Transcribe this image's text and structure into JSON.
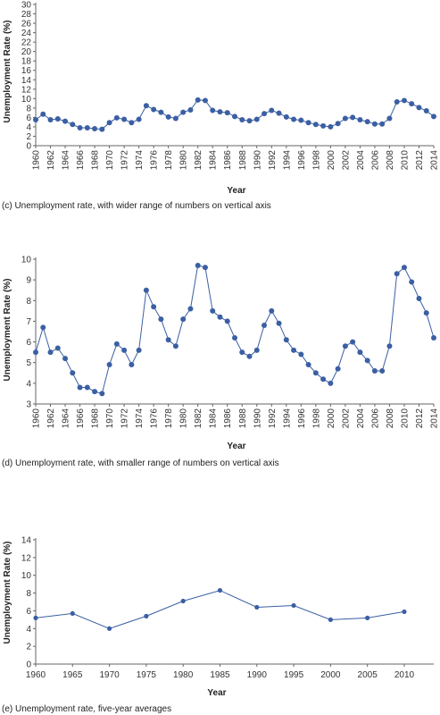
{
  "colors": {
    "series": "#3b5fa3",
    "axis": "#666666",
    "text": "#222222"
  },
  "chart_data": [
    {
      "type": "line",
      "caption": "(c) Unemployment rate, with wider range of numbers on vertical axis",
      "xlabel": "Year",
      "ylabel": "Unemployment Rate (%)",
      "ylim": [
        0,
        30
      ],
      "yticks": [
        0,
        2,
        4,
        6,
        8,
        10,
        12,
        14,
        16,
        18,
        20,
        22,
        24,
        26,
        28,
        30
      ],
      "xticks": [
        1960,
        1962,
        1964,
        1966,
        1968,
        1970,
        1972,
        1974,
        1976,
        1978,
        1980,
        1982,
        1984,
        1986,
        1988,
        1990,
        1992,
        1994,
        1996,
        1998,
        2000,
        2002,
        2004,
        2006,
        2008,
        2010,
        2012,
        2014
      ],
      "x": [
        1960,
        1961,
        1962,
        1963,
        1964,
        1965,
        1966,
        1967,
        1968,
        1969,
        1970,
        1971,
        1972,
        1973,
        1974,
        1975,
        1976,
        1977,
        1978,
        1979,
        1980,
        1981,
        1982,
        1983,
        1984,
        1985,
        1986,
        1987,
        1988,
        1989,
        1990,
        1991,
        1992,
        1993,
        1994,
        1995,
        1996,
        1997,
        1998,
        1999,
        2000,
        2001,
        2002,
        2003,
        2004,
        2005,
        2006,
        2007,
        2008,
        2009,
        2010,
        2011,
        2012,
        2013,
        2014
      ],
      "y": [
        5.5,
        6.7,
        5.5,
        5.7,
        5.2,
        4.5,
        3.8,
        3.8,
        3.6,
        3.5,
        4.9,
        5.9,
        5.6,
        4.9,
        5.6,
        8.5,
        7.7,
        7.1,
        6.1,
        5.8,
        7.1,
        7.6,
        9.7,
        9.6,
        7.5,
        7.2,
        7.0,
        6.2,
        5.5,
        5.3,
        5.6,
        6.8,
        7.5,
        6.9,
        6.1,
        5.6,
        5.4,
        4.9,
        4.5,
        4.2,
        4.0,
        4.7,
        5.8,
        6.0,
        5.5,
        5.1,
        4.6,
        4.6,
        5.8,
        9.3,
        9.6,
        8.9,
        8.1,
        7.4,
        6.2
      ],
      "grid": false
    },
    {
      "type": "line",
      "caption": "(d) Unemployment rate, with smaller range of numbers on vertical axis",
      "xlabel": "Year",
      "ylabel": "Unemployment Rate (%)",
      "ylim": [
        3,
        10
      ],
      "yticks": [
        3,
        4,
        5,
        6,
        7,
        8,
        9,
        10
      ],
      "xticks": [
        1960,
        1962,
        1964,
        1966,
        1968,
        1970,
        1972,
        1974,
        1976,
        1978,
        1980,
        1982,
        1984,
        1986,
        1988,
        1990,
        1992,
        1994,
        1996,
        1998,
        2000,
        2002,
        2004,
        2006,
        2008,
        2010,
        2012,
        2014
      ],
      "x": [
        1960,
        1961,
        1962,
        1963,
        1964,
        1965,
        1966,
        1967,
        1968,
        1969,
        1970,
        1971,
        1972,
        1973,
        1974,
        1975,
        1976,
        1977,
        1978,
        1979,
        1980,
        1981,
        1982,
        1983,
        1984,
        1985,
        1986,
        1987,
        1988,
        1989,
        1990,
        1991,
        1992,
        1993,
        1994,
        1995,
        1996,
        1997,
        1998,
        1999,
        2000,
        2001,
        2002,
        2003,
        2004,
        2005,
        2006,
        2007,
        2008,
        2009,
        2010,
        2011,
        2012,
        2013,
        2014
      ],
      "y": [
        5.5,
        6.7,
        5.5,
        5.7,
        5.2,
        4.5,
        3.8,
        3.8,
        3.6,
        3.5,
        4.9,
        5.9,
        5.6,
        4.9,
        5.6,
        8.5,
        7.7,
        7.1,
        6.1,
        5.8,
        7.1,
        7.6,
        9.7,
        9.6,
        7.5,
        7.2,
        7.0,
        6.2,
        5.5,
        5.3,
        5.6,
        6.8,
        7.5,
        6.9,
        6.1,
        5.6,
        5.4,
        4.9,
        4.5,
        4.2,
        4.0,
        4.7,
        5.8,
        6.0,
        5.5,
        5.1,
        4.6,
        4.6,
        5.8,
        9.3,
        9.6,
        8.9,
        8.1,
        7.4,
        6.2
      ],
      "grid": false
    },
    {
      "type": "line",
      "caption": "(e) Unemployment rate, five-year averages",
      "xlabel": "Year",
      "ylabel": "Unemployment Rate (%)",
      "ylim": [
        0,
        14
      ],
      "yticks": [
        0,
        2,
        4,
        6,
        8,
        10,
        12,
        14
      ],
      "xticks": [
        1960,
        1965,
        1970,
        1975,
        1980,
        1985,
        1990,
        1995,
        2000,
        2005,
        2010
      ],
      "x": [
        1960,
        1965,
        1970,
        1975,
        1980,
        1985,
        1990,
        1995,
        2000,
        2005,
        2010
      ],
      "y": [
        5.2,
        5.7,
        4.0,
        5.4,
        7.1,
        8.3,
        6.4,
        6.6,
        5.0,
        5.2,
        5.9
      ],
      "grid": false
    }
  ]
}
